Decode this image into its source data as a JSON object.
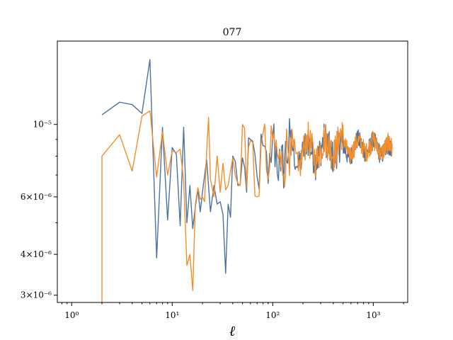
{
  "chart_data": {
    "type": "line",
    "title": "077",
    "xlabel": "ℓ",
    "ylabel": "",
    "xscale": "log",
    "yscale": "log",
    "xlim": [
      0.72,
      2200
    ],
    "ylim": [
      2.85e-06,
      1.8e-05
    ],
    "x_ticks": [
      {
        "value": 1,
        "label": "10⁰"
      },
      {
        "value": 10,
        "label": "10¹"
      },
      {
        "value": 100,
        "label": "10²"
      },
      {
        "value": 1000,
        "label": "10³"
      }
    ],
    "y_ticks": [
      {
        "value": 1e-05,
        "label": "10⁻⁵"
      },
      {
        "value": 6e-06,
        "label": "6×10⁻⁶"
      },
      {
        "value": 4e-06,
        "label": "4×10⁻⁶"
      },
      {
        "value": 3e-06,
        "label": "3×10⁻⁶"
      }
    ],
    "grid": false,
    "colors": [
      "#4c72a0",
      "#f28e2b"
    ],
    "series": [
      {
        "color": "#4c72a0",
        "points": [
          [
            2,
            1.07e-05
          ],
          [
            3,
            1.17e-05
          ],
          [
            4,
            1.15e-05
          ],
          [
            5,
            1.08e-05
          ],
          [
            6,
            1.58e-05
          ],
          [
            7,
            3.9e-06
          ],
          [
            8,
            9.8e-06
          ],
          [
            9,
            5.1e-06
          ],
          [
            10,
            8.5e-06
          ],
          [
            11,
            8.1e-06
          ],
          [
            12,
            4.9e-06
          ],
          [
            13,
            9.8e-06
          ],
          [
            14,
            5e-06
          ],
          [
            15,
            6.5e-06
          ],
          [
            16,
            4.8e-06
          ],
          [
            17,
            5.6e-06
          ],
          [
            18,
            6.3e-06
          ],
          [
            19,
            5.4e-06
          ],
          [
            20,
            6.2e-06
          ],
          [
            22,
            7.8e-06
          ],
          [
            24,
            5.4e-06
          ],
          [
            26,
            6.5e-06
          ],
          [
            28,
            5.7e-06
          ],
          [
            30,
            5.8e-06
          ],
          [
            32,
            5.3e-06
          ],
          [
            34,
            3.5e-06
          ],
          [
            36,
            5.7e-06
          ],
          [
            38,
            5.2e-06
          ],
          [
            40,
            8e-06
          ],
          [
            45,
            6.5e-06
          ],
          [
            50,
            7.9e-06
          ],
          [
            55,
            6.2e-06
          ],
          [
            60,
            9e-06
          ],
          [
            70,
            6.9e-06
          ],
          [
            80,
            8.6e-06
          ],
          [
            90,
            6.6e-06
          ],
          [
            100,
            9.2e-06
          ],
          [
            120,
            7.2e-06
          ],
          [
            150,
            9e-06
          ],
          [
            180,
            7.3e-06
          ],
          [
            220,
            9.1e-06
          ],
          [
            270,
            7.6e-06
          ],
          [
            330,
            9.2e-06
          ],
          [
            400,
            7.9e-06
          ],
          [
            480,
            8.9e-06
          ],
          [
            580,
            7.8e-06
          ],
          [
            700,
            9.1e-06
          ],
          [
            850,
            8.1e-06
          ],
          [
            1000,
            9e-06
          ],
          [
            1200,
            8e-06
          ],
          [
            1400,
            8.7e-06
          ],
          [
            1536,
            8.4e-06
          ]
        ]
      },
      {
        "color": "#f28e2b",
        "points": [
          [
            2,
            2.85e-06
          ],
          [
            2,
            8e-06
          ],
          [
            3,
            9.3e-06
          ],
          [
            4,
            7.2e-06
          ],
          [
            5,
            1.06e-05
          ],
          [
            6,
            1.1e-05
          ],
          [
            7,
            6.9e-06
          ],
          [
            8,
            9.5e-06
          ],
          [
            9,
            7e-06
          ],
          [
            10,
            8.3e-06
          ],
          [
            11,
            8.2e-06
          ],
          [
            12,
            8.4e-06
          ],
          [
            13,
            6.7e-06
          ],
          [
            14,
            3.7e-06
          ],
          [
            15,
            4e-06
          ],
          [
            16,
            3.1e-06
          ],
          [
            17,
            5.7e-06
          ],
          [
            18,
            6.4e-06
          ],
          [
            19,
            5.9e-06
          ],
          [
            20,
            6e-06
          ],
          [
            21,
            5.8e-06
          ],
          [
            22,
            8.3e-06
          ],
          [
            23,
            1.05e-05
          ],
          [
            24,
            6.8e-06
          ],
          [
            26,
            6e-06
          ],
          [
            28,
            8e-06
          ],
          [
            30,
            6.2e-06
          ],
          [
            32,
            7.6e-06
          ],
          [
            34,
            6.3e-06
          ],
          [
            36,
            6.5e-06
          ],
          [
            40,
            7.9e-06
          ],
          [
            45,
            6.6e-06
          ],
          [
            50,
            1e-05
          ],
          [
            55,
            6.4e-06
          ],
          [
            60,
            8.9e-06
          ],
          [
            70,
            6e-06
          ],
          [
            80,
            9.4e-06
          ],
          [
            90,
            6.8e-06
          ],
          [
            100,
            9e-06
          ],
          [
            120,
            7.4e-06
          ],
          [
            150,
            9.1e-06
          ],
          [
            180,
            7.2e-06
          ],
          [
            220,
            9.3e-06
          ],
          [
            270,
            7.7e-06
          ],
          [
            330,
            9.2e-06
          ],
          [
            400,
            8e-06
          ],
          [
            480,
            9.5e-06
          ],
          [
            580,
            7.9e-06
          ],
          [
            700,
            9e-06
          ],
          [
            850,
            8.2e-06
          ],
          [
            1000,
            9e-06
          ],
          [
            1200,
            8.1e-06
          ],
          [
            1400,
            8.8e-06
          ],
          [
            1536,
            8.5e-06
          ]
        ]
      }
    ]
  }
}
